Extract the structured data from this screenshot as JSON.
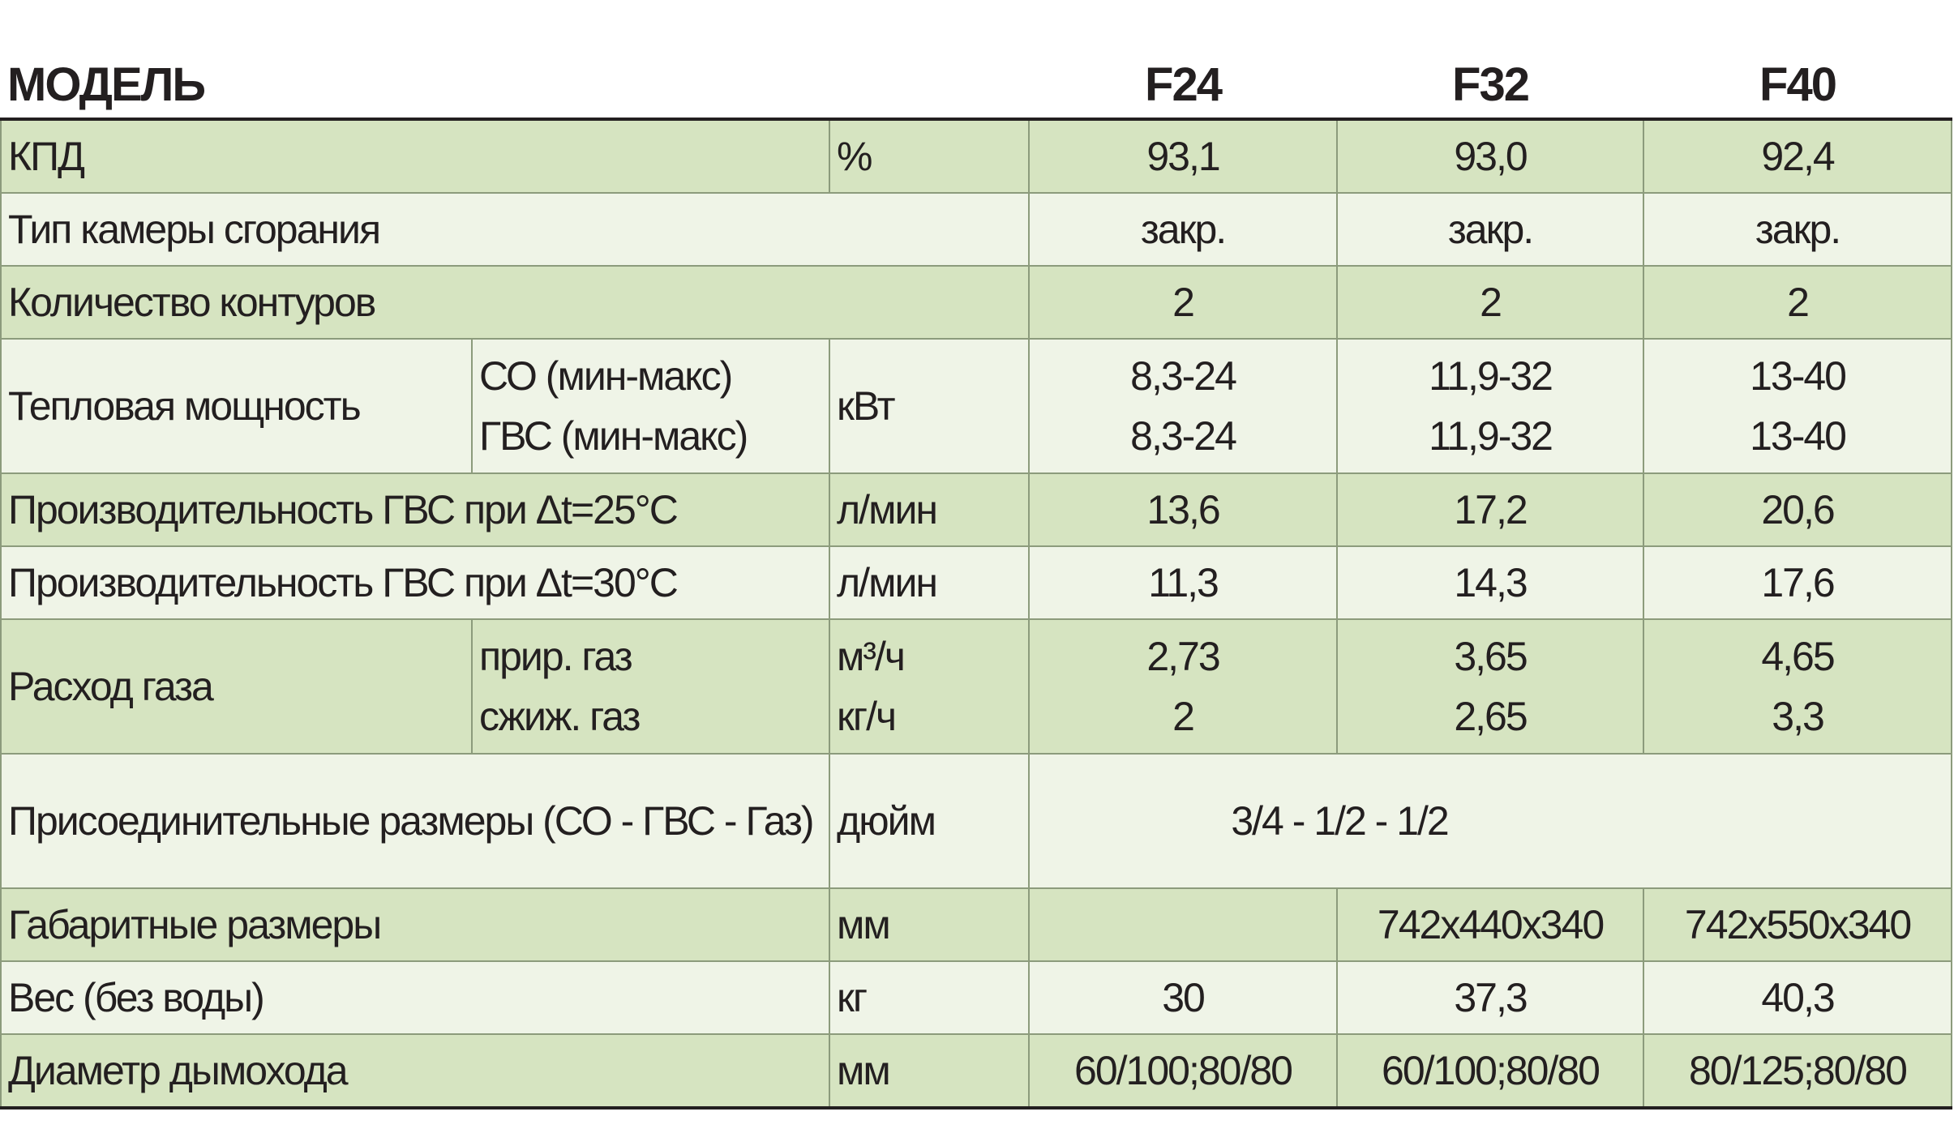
{
  "header": {
    "title": "МОДЕЛЬ",
    "models": [
      "F24",
      "F32",
      "F40"
    ]
  },
  "rows": [
    {
      "label": "КПД",
      "unit": "%",
      "values": [
        "93,1",
        "93,0",
        "92,4"
      ]
    },
    {
      "label": "Тип камеры сгорания",
      "values": [
        "закр.",
        "закр.",
        "закр."
      ]
    },
    {
      "label": "Количество контуров",
      "values": [
        "2",
        "2",
        "2"
      ]
    },
    {
      "label": "Тепловая мощность",
      "sub": [
        "СО (мин-макс)",
        "ГВС (мин-макс)"
      ],
      "unit": "кВт",
      "values": [
        [
          "8,3-24",
          "8,3-24"
        ],
        [
          "11,9-32",
          "11,9-32"
        ],
        [
          "13-40",
          "13-40"
        ]
      ]
    },
    {
      "label": "Производительность ГВС при Δt=25°С",
      "unit": "л/мин",
      "values": [
        "13,6",
        "17,2",
        "20,6"
      ]
    },
    {
      "label": "Производительность ГВС при Δt=30°С",
      "unit": "л/мин",
      "values": [
        "11,3",
        "14,3",
        "17,6"
      ]
    },
    {
      "label": "Расход газа",
      "sub": [
        "прир. газ",
        "сжиж. газ"
      ],
      "unit": [
        "м³/ч",
        "кг/ч"
      ],
      "values": [
        [
          "2,73",
          "2"
        ],
        [
          "3,65",
          "2,65"
        ],
        [
          "4,65",
          "3,3"
        ]
      ]
    },
    {
      "label": "Присоединительные размеры (СО - ГВС - Газ)",
      "unit": "дюйм",
      "value": "3/4 - 1/2 - 1/2"
    },
    {
      "label": "Габаритные размеры",
      "unit": "мм",
      "values": [
        null,
        "742x440x340",
        "742x550x340"
      ]
    },
    {
      "label": "Вес (без воды)",
      "unit": "кг",
      "values": [
        "30",
        "37,3",
        "40,3"
      ]
    },
    {
      "label": "Диаметр дымохода",
      "unit": "мм",
      "values": [
        "60/100;80/80",
        "60/100;80/80",
        "80/125;80/80"
      ]
    }
  ]
}
